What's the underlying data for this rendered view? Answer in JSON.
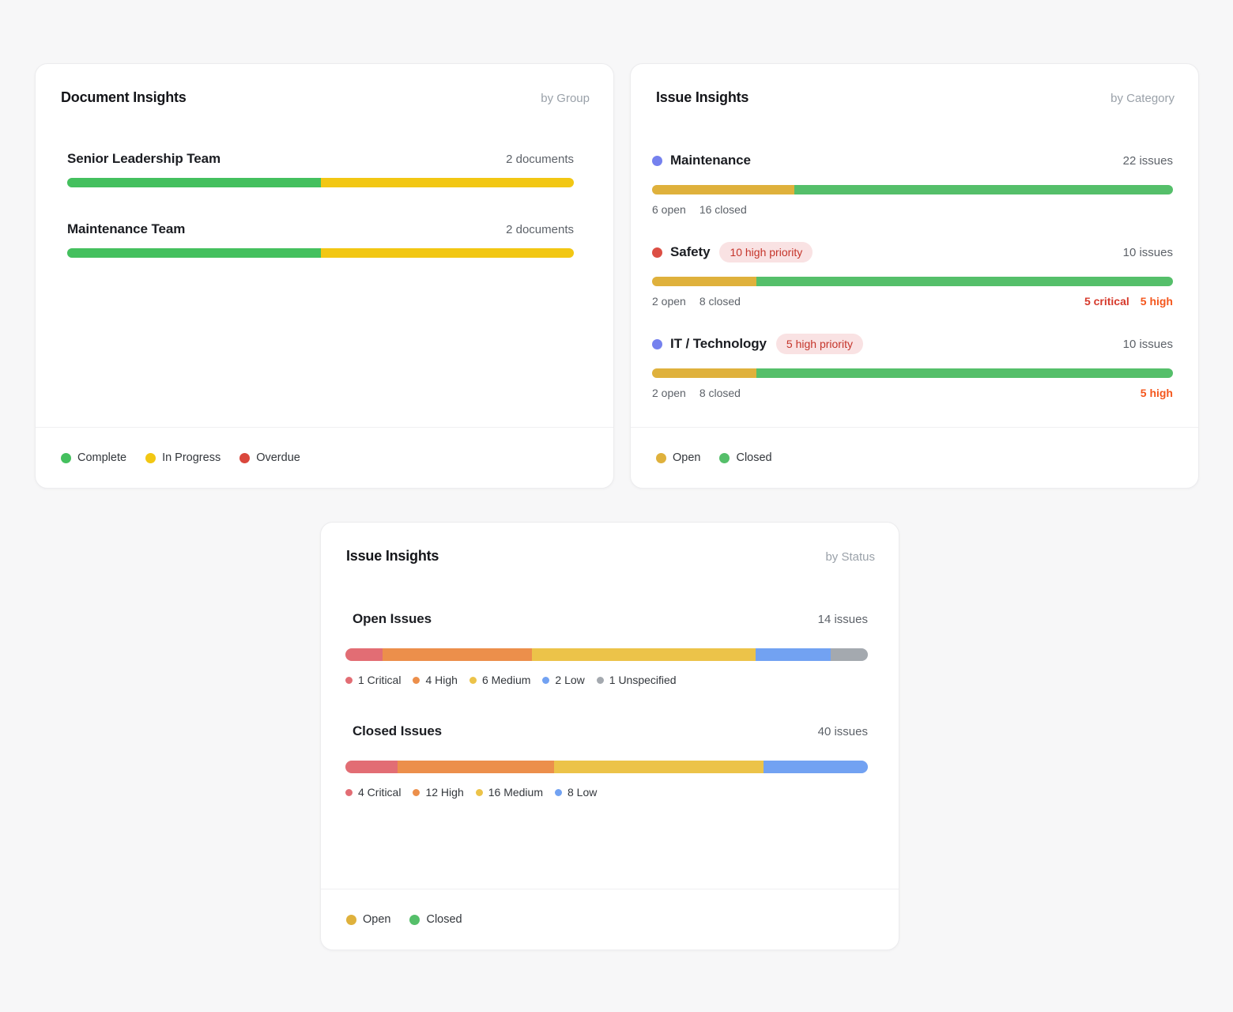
{
  "page": {
    "background": "#f7f7f8"
  },
  "documents_card": {
    "title": "Document Insights",
    "subtitle": "by Group",
    "rows": [
      {
        "label": "Senior Leadership Team",
        "count": "2 documents",
        "segments": [
          {
            "name": "complete",
            "color": "#44c05e",
            "pct": 50
          },
          {
            "name": "in-progress",
            "color": "#f2c713",
            "pct": 50
          }
        ]
      },
      {
        "label": "Maintenance Team",
        "count": "2 documents",
        "segments": [
          {
            "name": "complete",
            "color": "#44c05e",
            "pct": 50
          },
          {
            "name": "in-progress",
            "color": "#f2c713",
            "pct": 50
          }
        ]
      }
    ],
    "legend": [
      {
        "label": "Complete",
        "color": "#44c05e"
      },
      {
        "label": "In Progress",
        "color": "#f2c713"
      },
      {
        "label": "Overdue",
        "color": "#da473c"
      }
    ]
  },
  "category_card": {
    "title": "Issue Insights",
    "subtitle": "by Category",
    "rows": [
      {
        "label": "Maintenance",
        "dot_color": "#7581ee",
        "count": "22 issues",
        "open_label": "6 open",
        "closed_label": "16 closed",
        "segments": [
          {
            "name": "open",
            "color": "#dfb13c",
            "pct": 27.3
          },
          {
            "name": "closed",
            "color": "#55bf6a",
            "pct": 72.7
          }
        ],
        "priority": []
      },
      {
        "label": "Safety",
        "dot_color": "#dc4f44",
        "badge": "10 high priority",
        "count": "10 issues",
        "open_label": "2 open",
        "closed_label": "8 closed",
        "segments": [
          {
            "name": "open",
            "color": "#dfb13c",
            "pct": 20
          },
          {
            "name": "closed",
            "color": "#55bf6a",
            "pct": 80
          }
        ],
        "priority": [
          {
            "text": "5 critical",
            "color": "#d63a2c"
          },
          {
            "text": "5 high",
            "color": "#f4571d"
          }
        ]
      },
      {
        "label": "IT / Technology",
        "dot_color": "#7581ee",
        "badge": "5 high priority",
        "count": "10 issues",
        "open_label": "2 open",
        "closed_label": "8 closed",
        "segments": [
          {
            "name": "open",
            "color": "#dfb13c",
            "pct": 20
          },
          {
            "name": "closed",
            "color": "#55bf6a",
            "pct": 80
          }
        ],
        "priority": [
          {
            "text": "5 high",
            "color": "#f4571d"
          }
        ]
      }
    ],
    "legend": [
      {
        "label": "Open",
        "color": "#dfb13c"
      },
      {
        "label": "Closed",
        "color": "#55bf6a"
      }
    ]
  },
  "status_card": {
    "title": "Issue Insights",
    "subtitle": "by Status",
    "sections": [
      {
        "label": "Open Issues",
        "count": "14 issues",
        "segments": [
          {
            "label": "1 Critical",
            "color": "#e26d74",
            "pct": 7.14
          },
          {
            "label": "4 High",
            "color": "#ec8f4b",
            "pct": 28.57
          },
          {
            "label": "6 Medium",
            "color": "#ecc349",
            "pct": 42.86
          },
          {
            "label": "2 Low",
            "color": "#72a2f2",
            "pct": 14.29
          },
          {
            "label": "1 Unspecified",
            "color": "#a4a9af",
            "pct": 7.14
          }
        ]
      },
      {
        "label": "Closed Issues",
        "count": "40 issues",
        "segments": [
          {
            "label": "4 Critical",
            "color": "#e26d74",
            "pct": 10
          },
          {
            "label": "12 High",
            "color": "#ec8f4b",
            "pct": 30
          },
          {
            "label": "16 Medium",
            "color": "#ecc349",
            "pct": 40
          },
          {
            "label": "8 Low",
            "color": "#72a2f2",
            "pct": 20
          }
        ]
      }
    ],
    "legend": [
      {
        "label": "Open",
        "color": "#dfb13c"
      },
      {
        "label": "Closed",
        "color": "#55bf6a"
      }
    ]
  },
  "chart_data": [
    {
      "type": "bar",
      "title": "Document Insights by Group",
      "categories": [
        "Senior Leadership Team",
        "Maintenance Team"
      ],
      "series": [
        {
          "name": "Complete",
          "values": [
            1,
            1
          ]
        },
        {
          "name": "In Progress",
          "values": [
            1,
            1
          ]
        },
        {
          "name": "Overdue",
          "values": [
            0,
            0
          ]
        }
      ],
      "totals": [
        2,
        2
      ],
      "legend_position": "bottom"
    },
    {
      "type": "bar",
      "title": "Issue Insights by Category",
      "categories": [
        "Maintenance",
        "Safety",
        "IT / Technology"
      ],
      "series": [
        {
          "name": "Open",
          "values": [
            6,
            2,
            2
          ]
        },
        {
          "name": "Closed",
          "values": [
            16,
            8,
            8
          ]
        }
      ],
      "totals": [
        22,
        10,
        10
      ],
      "annotations": [
        "",
        "10 high priority; 5 critical; 5 high",
        "5 high priority; 5 high"
      ],
      "legend_position": "bottom"
    },
    {
      "type": "bar",
      "title": "Issue Insights by Status",
      "categories": [
        "Open Issues",
        "Closed Issues"
      ],
      "series": [
        {
          "name": "Critical",
          "values": [
            1,
            4
          ]
        },
        {
          "name": "High",
          "values": [
            4,
            12
          ]
        },
        {
          "name": "Medium",
          "values": [
            6,
            16
          ]
        },
        {
          "name": "Low",
          "values": [
            2,
            8
          ]
        },
        {
          "name": "Unspecified",
          "values": [
            1,
            0
          ]
        }
      ],
      "totals": [
        14,
        40
      ],
      "legend_position": "bottom"
    }
  ]
}
